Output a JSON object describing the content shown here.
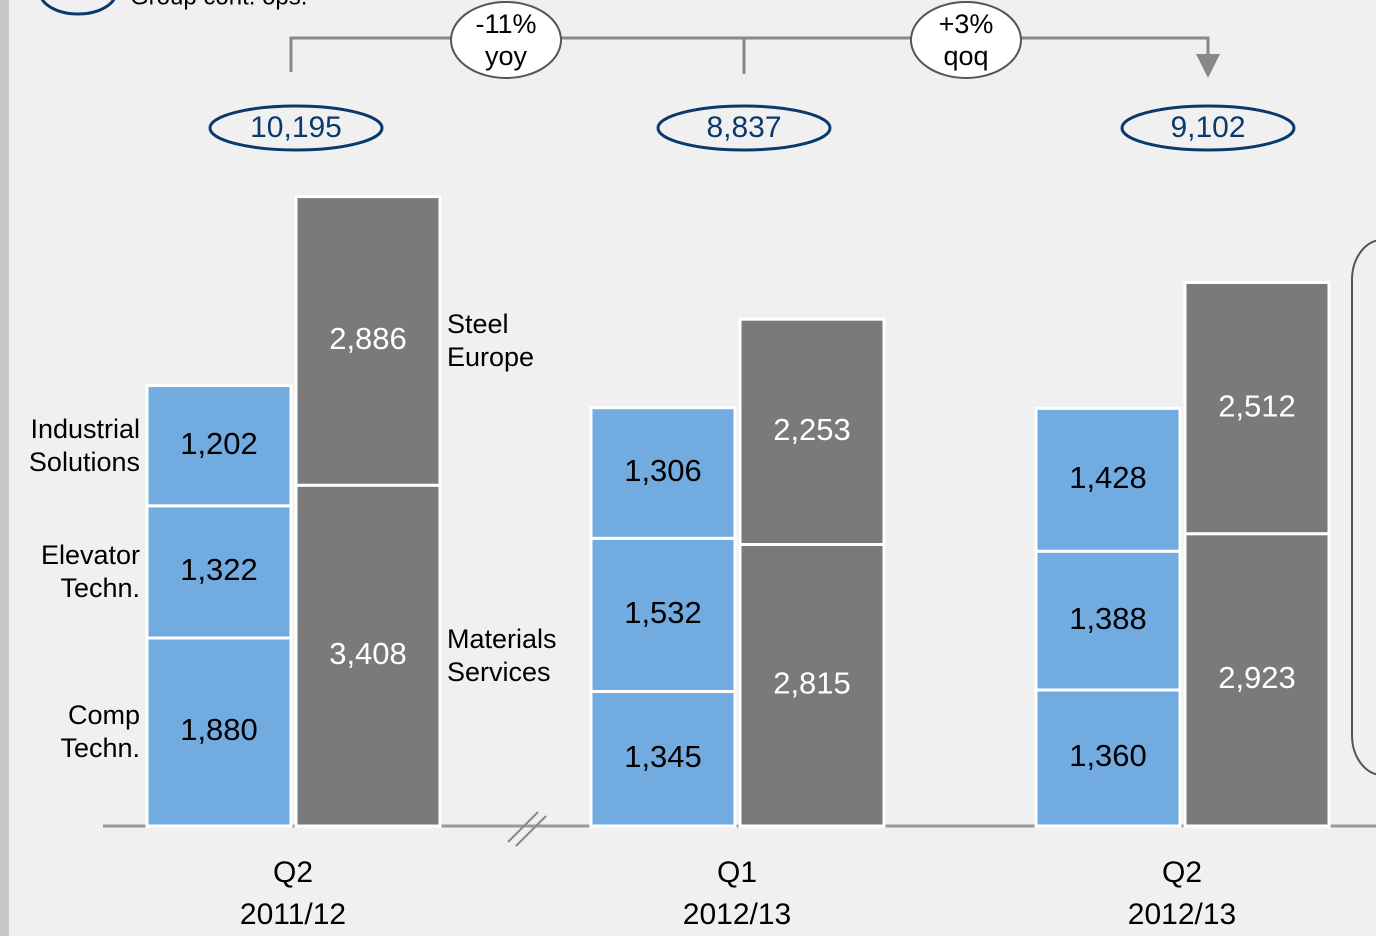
{
  "chart_data": {
    "type": "stacked-bar",
    "note": "Group cont. ops.",
    "categories": [
      "Q2 2011/12",
      "Q1 2012/13",
      "Q2 2012/13"
    ],
    "series": [
      {
        "name": "Comp Techn.",
        "color": "#72abe0",
        "values": [
          1880,
          1345,
          1360
        ],
        "value_labels": [
          "1,880",
          "1,345",
          "1,360"
        ]
      },
      {
        "name": "Elevator Techn.",
        "color": "#72abe0",
        "values": [
          1322,
          1532,
          1388
        ],
        "value_labels": [
          "1,322",
          "1,532",
          "1,388"
        ]
      },
      {
        "name": "Industrial Solutions",
        "color": "#72abe0",
        "values": [
          1202,
          1306,
          1428
        ],
        "value_labels": [
          "1,202",
          "1,306",
          "1,428"
        ]
      },
      {
        "name": "Materials Services",
        "color": "#7a7a7a",
        "values": [
          3408,
          2815,
          2923
        ],
        "value_labels": [
          "3,408",
          "2,815",
          "2,923"
        ]
      },
      {
        "name": "Steel Europe",
        "color": "#7a7a7a",
        "values": [
          2886,
          2253,
          2512
        ],
        "value_labels": [
          "2,886",
          "2,253",
          "2,512"
        ]
      }
    ],
    "totals": {
      "values": [
        10195,
        8837,
        9102
      ],
      "value_labels": [
        "10,195",
        "8,837",
        "9,102"
      ]
    },
    "annotations": [
      "-11% yoy",
      "+3% qoq"
    ]
  }
}
